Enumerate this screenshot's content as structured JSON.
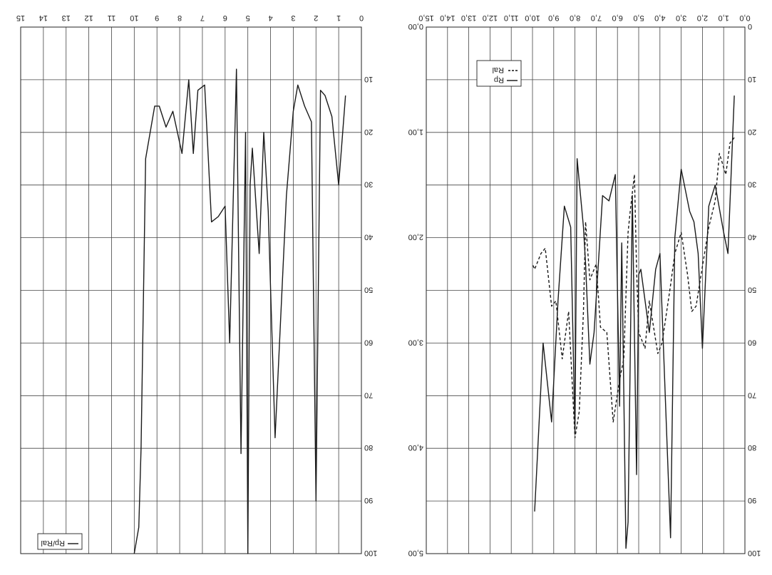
{
  "chart_data": [
    {
      "type": "line",
      "orientation": "rotated-180",
      "x_ticks": [
        "0",
        "1",
        "2",
        "3",
        "4",
        "5",
        "6",
        "7",
        "8",
        "9",
        "10",
        "11",
        "12",
        "13",
        "14",
        "15"
      ],
      "xlim": [
        0,
        15
      ],
      "y_ticks": [
        "10",
        "20",
        "30",
        "40",
        "50",
        "60",
        "70",
        "80",
        "90",
        "100"
      ],
      "ylim": [
        0,
        100
      ],
      "grid": true,
      "legend_position": "top-left",
      "series": [
        {
          "name": "Rp/Ral",
          "points": [
            [
              0.7,
              13
            ],
            [
              1.0,
              30
            ],
            [
              1.3,
              17
            ],
            [
              1.6,
              13
            ],
            [
              1.8,
              12
            ],
            [
              2.0,
              90
            ],
            [
              2.2,
              18
            ],
            [
              2.5,
              15
            ],
            [
              2.8,
              11
            ],
            [
              3.0,
              16
            ],
            [
              3.3,
              32
            ],
            [
              3.8,
              78
            ],
            [
              4.1,
              35
            ],
            [
              4.3,
              20
            ],
            [
              4.5,
              43
            ],
            [
              4.8,
              23
            ],
            [
              4.9,
              30
            ],
            [
              5.0,
              100
            ],
            [
              5.1,
              20
            ],
            [
              5.3,
              81
            ],
            [
              5.5,
              8
            ],
            [
              5.8,
              60
            ],
            [
              6.0,
              34
            ],
            [
              6.3,
              36
            ],
            [
              6.6,
              37
            ],
            [
              6.9,
              11
            ],
            [
              7.2,
              12
            ],
            [
              7.4,
              24
            ],
            [
              7.6,
              10
            ],
            [
              7.9,
              24
            ],
            [
              8.3,
              16
            ],
            [
              8.6,
              19
            ],
            [
              8.9,
              15
            ],
            [
              9.1,
              15
            ],
            [
              9.5,
              25
            ],
            [
              9.7,
              80
            ],
            [
              9.8,
              95
            ],
            [
              10.0,
              100
            ]
          ]
        }
      ]
    },
    {
      "type": "line",
      "orientation": "rotated-180",
      "x_ticks": [
        "0,0",
        "1,0",
        "2,0",
        "3,0",
        "4,0",
        "5,0",
        "6,0",
        "7,0",
        "8,0",
        "9,0",
        "10,0",
        "11,0",
        "12,0",
        "13,0",
        "14,0",
        "15,0"
      ],
      "xlim": [
        0,
        15
      ],
      "y_ticks": [
        "0",
        "10",
        "20",
        "30",
        "40",
        "50",
        "60",
        "70",
        "80",
        "90",
        "100"
      ],
      "ylim": [
        0,
        100
      ],
      "y2_ticks": [
        "0,00",
        "1,00",
        "2,00",
        "3,00",
        "4,00",
        "5,00"
      ],
      "y2lim": [
        0,
        5
      ],
      "grid": true,
      "legend_position": "bottom-left",
      "series": [
        {
          "name": "Rp",
          "axis": "primary",
          "style": "solid",
          "points": [
            [
              0.5,
              13
            ],
            [
              0.8,
              43
            ],
            [
              1.0,
              39
            ],
            [
              1.4,
              30
            ],
            [
              1.7,
              34
            ],
            [
              2.0,
              61
            ],
            [
              2.2,
              43
            ],
            [
              2.4,
              37
            ],
            [
              2.6,
              35
            ],
            [
              2.9,
              29
            ],
            [
              3.0,
              27
            ],
            [
              3.3,
              40
            ],
            [
              3.5,
              97
            ],
            [
              4.0,
              43
            ],
            [
              4.2,
              46
            ],
            [
              4.5,
              58
            ],
            [
              4.9,
              46
            ],
            [
              5.0,
              47
            ],
            [
              5.1,
              85
            ],
            [
              5.3,
              32
            ],
            [
              5.5,
              94
            ],
            [
              5.6,
              99
            ],
            [
              5.8,
              41
            ],
            [
              5.9,
              72
            ],
            [
              6.1,
              28
            ],
            [
              6.4,
              33
            ],
            [
              6.7,
              32
            ],
            [
              6.9,
              45
            ],
            [
              7.1,
              58
            ],
            [
              7.3,
              64
            ],
            [
              7.5,
              45
            ],
            [
              7.6,
              38
            ],
            [
              7.9,
              25
            ],
            [
              8.0,
              77
            ],
            [
              8.2,
              38
            ],
            [
              8.5,
              34
            ],
            [
              8.8,
              52
            ],
            [
              9.1,
              75
            ],
            [
              9.5,
              60
            ],
            [
              9.9,
              92
            ]
          ]
        },
        {
          "name": "Ral",
          "axis": "secondary",
          "style": "dashed",
          "points": [
            [
              0.5,
              21
            ],
            [
              0.7,
              22
            ],
            [
              0.9,
              28
            ],
            [
              1.2,
              24
            ],
            [
              1.4,
              33
            ],
            [
              1.7,
              38
            ],
            [
              2.1,
              48
            ],
            [
              2.3,
              53
            ],
            [
              2.5,
              54
            ],
            [
              2.7,
              47
            ],
            [
              3.0,
              39
            ],
            [
              3.3,
              43
            ],
            [
              3.5,
              49
            ],
            [
              3.9,
              60
            ],
            [
              4.1,
              62
            ],
            [
              4.3,
              57
            ],
            [
              4.5,
              52
            ],
            [
              4.7,
              61
            ],
            [
              5.0,
              58
            ],
            [
              5.1,
              46
            ],
            [
              5.2,
              28
            ],
            [
              5.4,
              35
            ],
            [
              5.5,
              39
            ],
            [
              5.7,
              63
            ],
            [
              5.9,
              67
            ],
            [
              6.2,
              75
            ],
            [
              6.5,
              58
            ],
            [
              6.8,
              57
            ],
            [
              7.0,
              45
            ],
            [
              7.3,
              48
            ],
            [
              7.5,
              37
            ],
            [
              7.6,
              54
            ],
            [
              7.8,
              73
            ],
            [
              8.0,
              78
            ],
            [
              8.3,
              54
            ],
            [
              8.6,
              63
            ],
            [
              8.9,
              52
            ],
            [
              9.1,
              53
            ],
            [
              9.4,
              42
            ],
            [
              9.6,
              43
            ],
            [
              9.9,
              46
            ],
            [
              10.0,
              45
            ]
          ]
        }
      ]
    }
  ]
}
